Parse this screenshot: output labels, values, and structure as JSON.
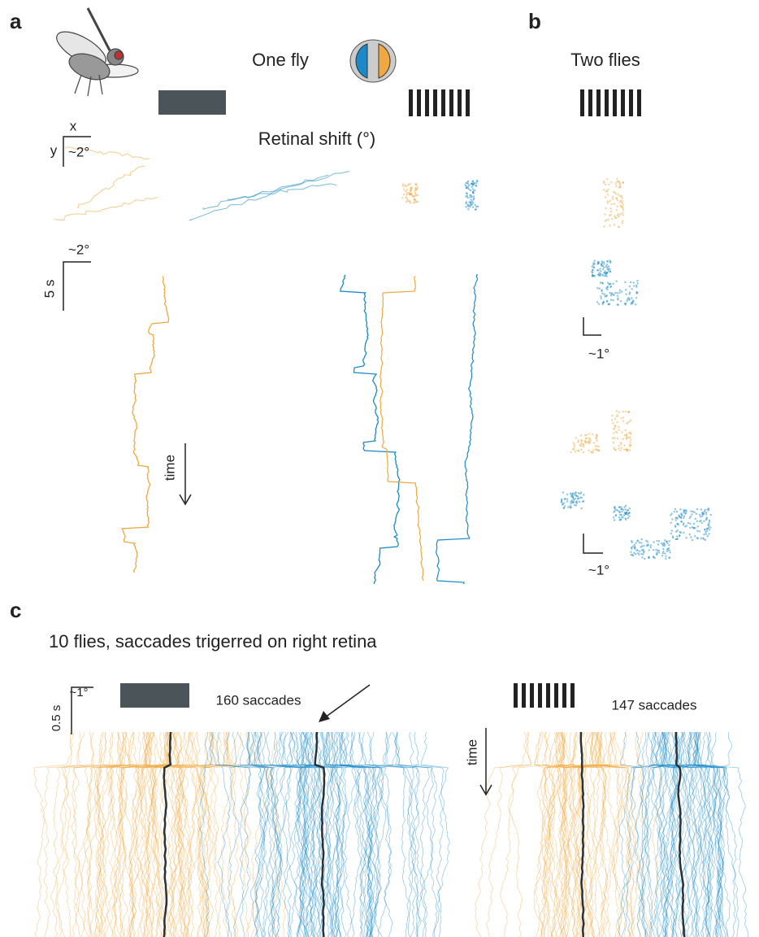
{
  "panels": {
    "a": {
      "label": "a",
      "one_fly": "One fly",
      "retinal_shift": "Retinal shift (°)",
      "axis_x": "x",
      "axis_y": "y",
      "scale_space": "~2°",
      "scale_space_2": "~2°",
      "scale_time": "5 s",
      "time": "time"
    },
    "b": {
      "label": "b",
      "title": "Two flies",
      "scale_1": "~1°",
      "scale_2": "~1°"
    },
    "c": {
      "label": "c",
      "title": "10 flies, saccades trigerred on right retina",
      "scale_space": "~1°",
      "scale_time": "0.5 s",
      "count_left": "160 saccades",
      "count_right": "147 saccades",
      "time": "time"
    }
  }
}
